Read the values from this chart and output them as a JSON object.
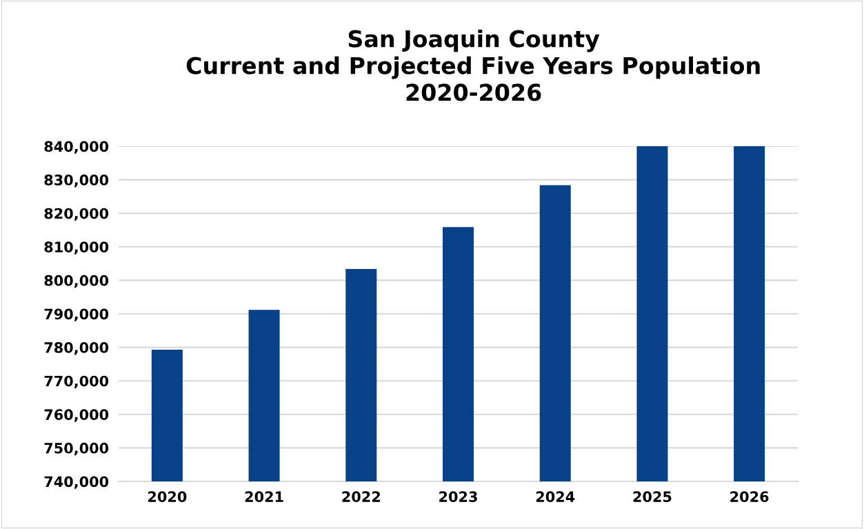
{
  "chart_data": {
    "type": "bar",
    "title": "San Joaquin County\nCurrent and Projected Five Years Population\n2020-2026",
    "categories": [
      "2020",
      "2021",
      "2022",
      "2023",
      "2024",
      "2025",
      "2026"
    ],
    "values": [
      779300,
      791200,
      803400,
      815900,
      828400,
      840000,
      840000
    ],
    "color": "#074188",
    "ylim": [
      740000,
      840000
    ],
    "yticks": [
      {
        "value": 740000,
        "label": "740,000"
      },
      {
        "value": 750000,
        "label": "750,000"
      },
      {
        "value": 760000,
        "label": "760,000"
      },
      {
        "value": 770000,
        "label": "770,000"
      },
      {
        "value": 780000,
        "label": "780,000"
      },
      {
        "value": 790000,
        "label": "790,000"
      },
      {
        "value": 800000,
        "label": "800,000"
      },
      {
        "value": 810000,
        "label": "810,000"
      },
      {
        "value": 820000,
        "label": "820,000"
      },
      {
        "value": 830000,
        "label": "830,000"
      },
      {
        "value": 840000,
        "label": "840,000"
      }
    ],
    "grid": "y"
  }
}
